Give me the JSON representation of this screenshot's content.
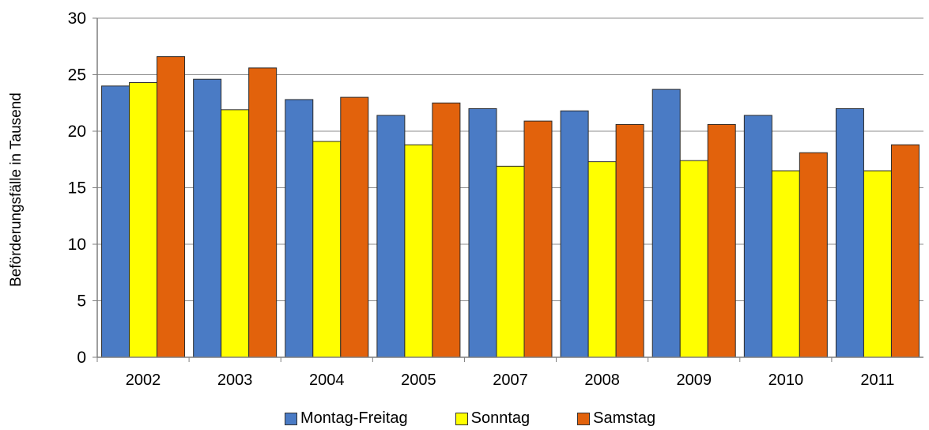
{
  "chart_data": {
    "type": "bar",
    "categories": [
      "2002",
      "2003",
      "2004",
      "2005",
      "2007",
      "2008",
      "2009",
      "2010",
      "2011"
    ],
    "series": [
      {
        "name": "Montag-Freitag",
        "color": "#4a7bc5",
        "values": [
          24.0,
          24.6,
          22.8,
          21.4,
          22.0,
          21.8,
          23.7,
          21.4,
          22.0
        ]
      },
      {
        "name": "Sonntag",
        "color": "#ffff00",
        "values": [
          24.3,
          21.9,
          19.1,
          18.8,
          16.9,
          17.3,
          17.4,
          16.5,
          16.5
        ]
      },
      {
        "name": "Samstag",
        "color": "#e2620c",
        "values": [
          26.6,
          25.6,
          23.0,
          22.5,
          20.9,
          20.6,
          20.6,
          18.1,
          18.8
        ]
      }
    ],
    "ylabel": "Beförderungsfälle in Tausend",
    "yticks": [
      "0",
      "5",
      "10",
      "15",
      "20",
      "25",
      "30"
    ],
    "ylim": [
      0,
      30
    ],
    "grid": true,
    "legend_position": "bottom"
  }
}
